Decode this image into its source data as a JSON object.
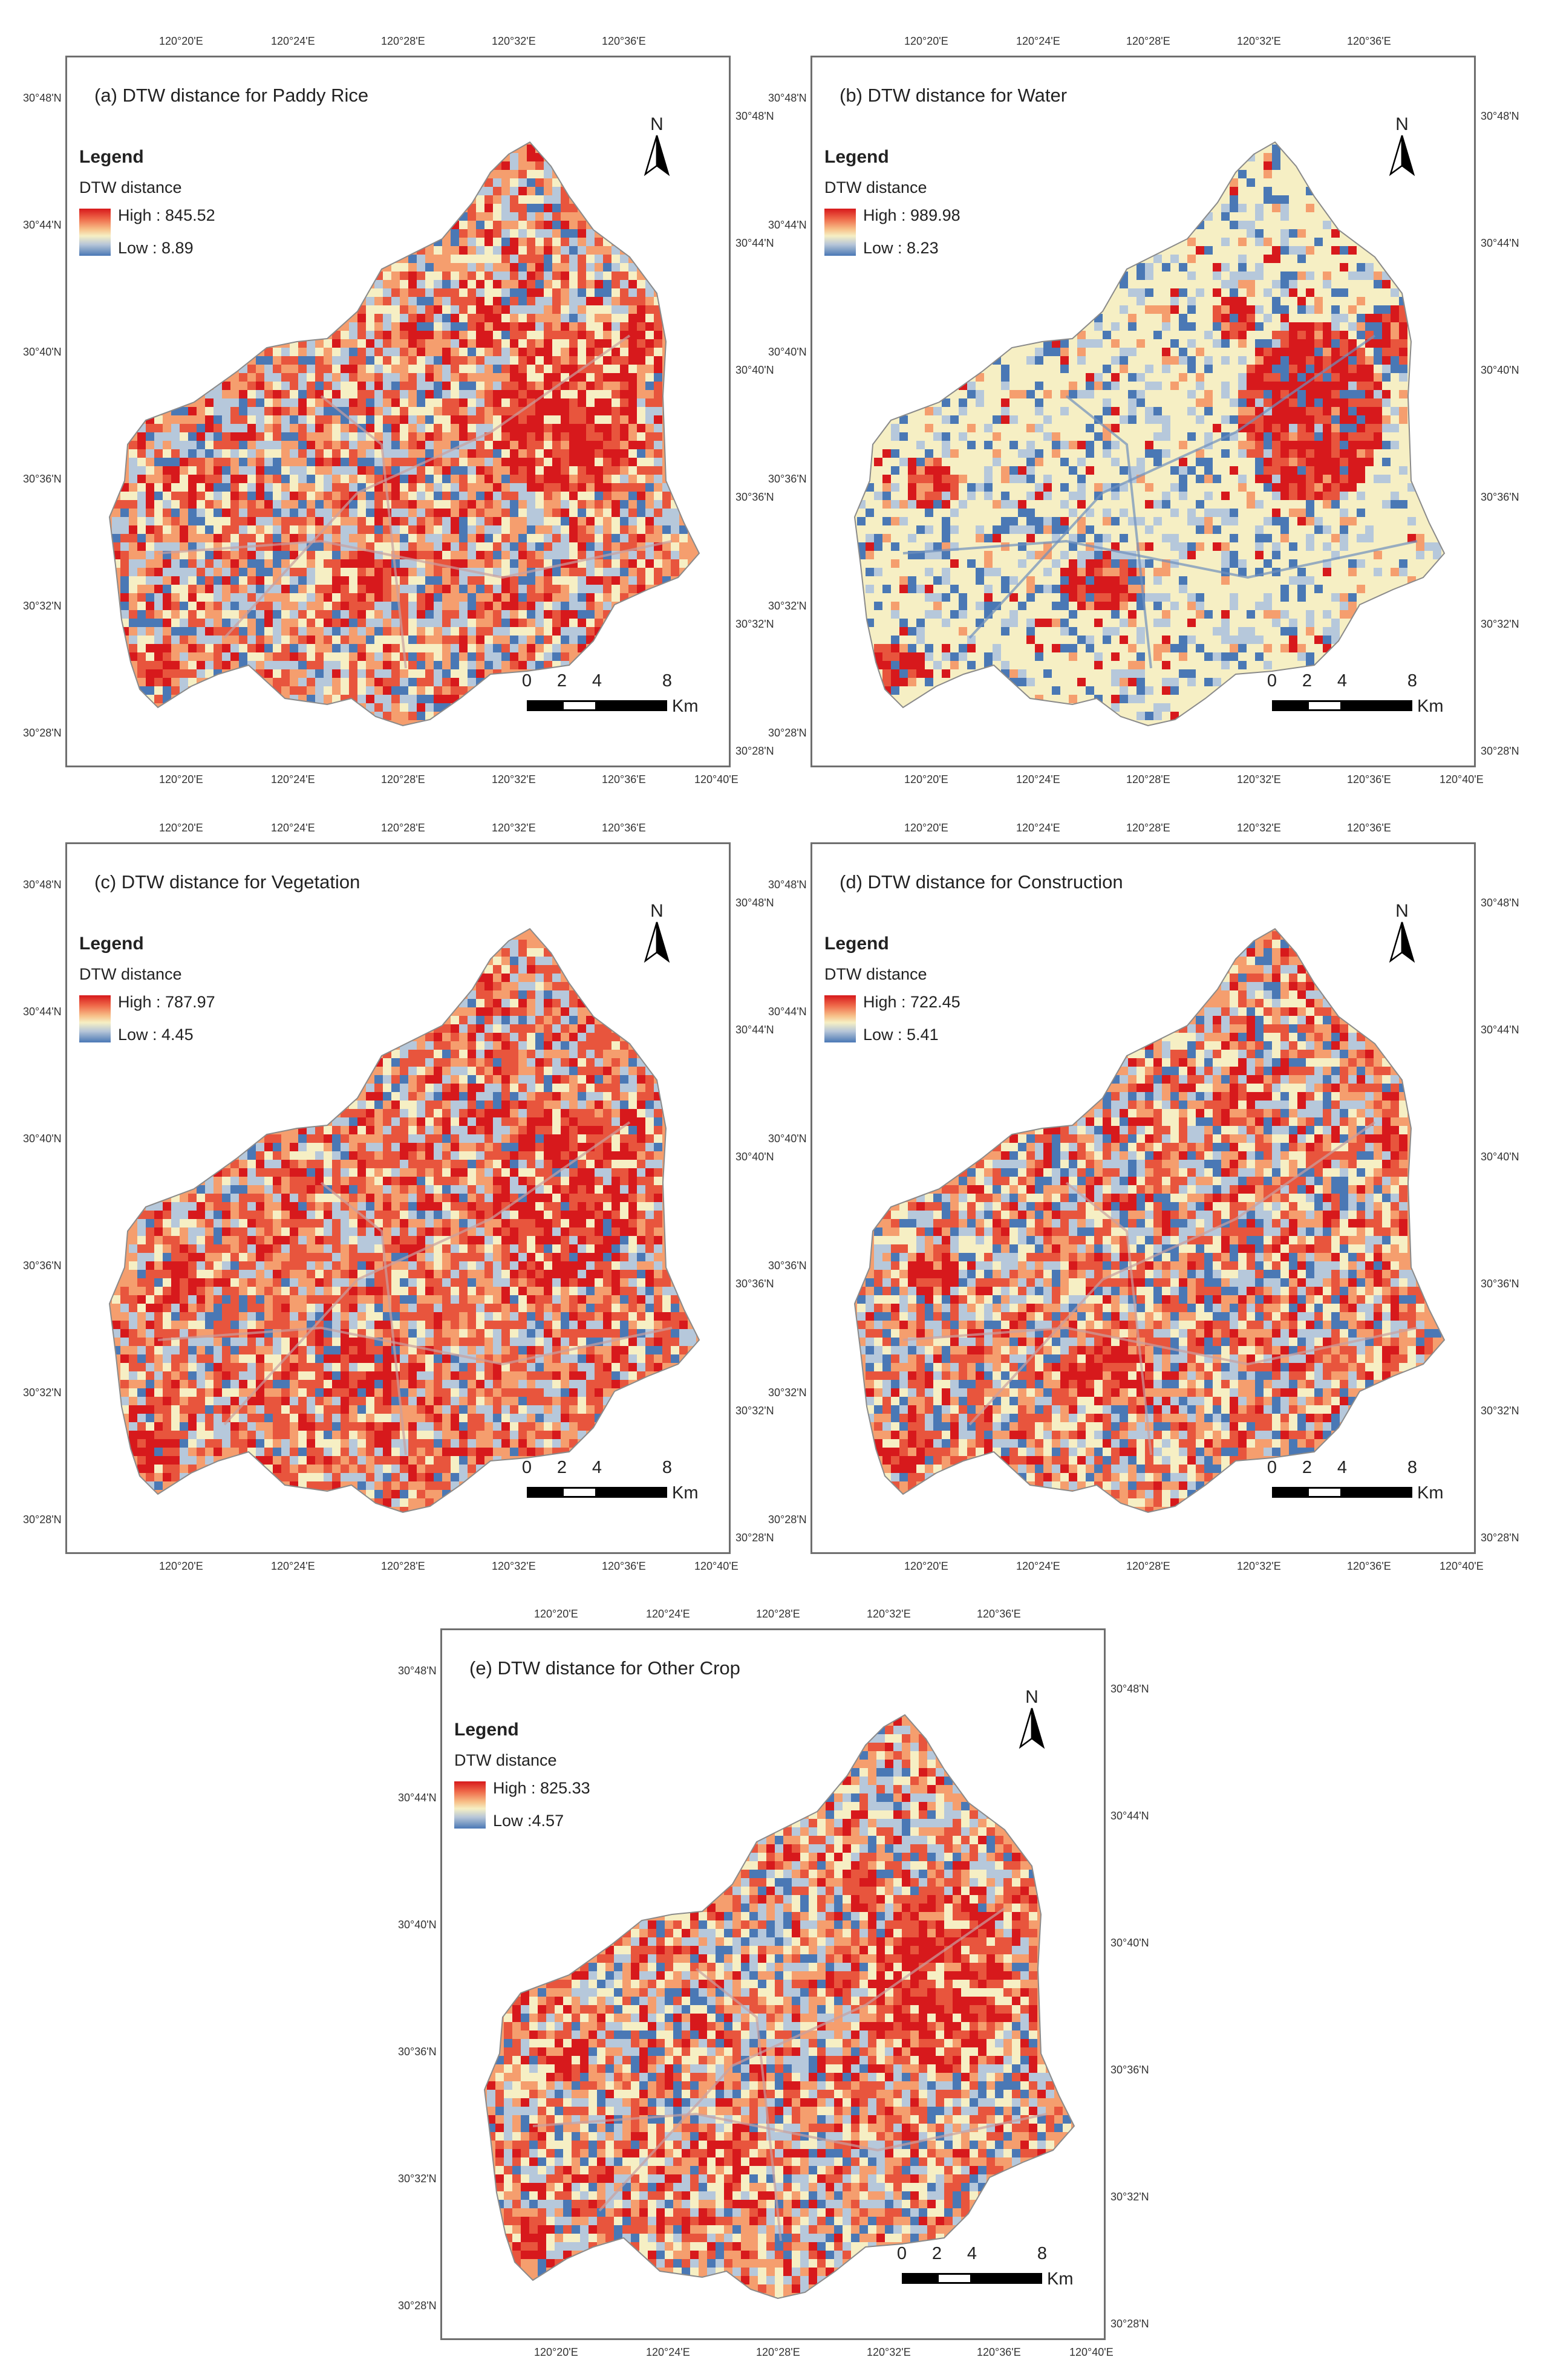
{
  "panels": [
    {
      "id": "a",
      "title": "(a) DTW distance for Paddy Rice",
      "legend_title": "Legend",
      "legend_subtitle": "DTW distance",
      "high": "High : 845.52",
      "low": "Low : 8.89",
      "dominant": "mixed"
    },
    {
      "id": "b",
      "title": "(b) DTW distance for Water",
      "legend_title": "Legend",
      "legend_subtitle": "DTW distance",
      "high": "High : 989.98",
      "low": "Low : 8.23",
      "dominant": "yellow"
    },
    {
      "id": "c",
      "title": "(c) DTW distance for Vegetation",
      "legend_title": "Legend",
      "legend_subtitle": "DTW distance",
      "high": "High : 787.97",
      "low": "Low : 4.45",
      "dominant": "red"
    },
    {
      "id": "d",
      "title": "(d) DTW distance for Construction",
      "legend_title": "Legend",
      "legend_subtitle": "DTW distance",
      "high": "High : 722.45",
      "low": "Low : 5.41",
      "dominant": "redblue"
    },
    {
      "id": "e",
      "title": "(e) DTW distance for Other Crop",
      "legend_title": "Legend",
      "legend_subtitle": "DTW distance",
      "high": "High : 825.33",
      "low": "Low :4.57",
      "dominant": "mixed"
    }
  ],
  "north_label": "N",
  "scale_bar": {
    "labels": [
      "0",
      "2",
      "4",
      "8"
    ],
    "unit": "Km"
  },
  "lon_ticks": [
    "120°20'E",
    "120°24'E",
    "120°28'E",
    "120°32'E",
    "120°36'E",
    "120°40'E"
  ],
  "lat_ticks": [
    "30°48'N",
    "30°44'N",
    "30°40'N",
    "30°36'N",
    "30°32'N",
    "30°28'N"
  ],
  "colors": {
    "high": "#d7191c",
    "mid": "#f6efc4",
    "low": "#4a78b5",
    "frame": "#6f6f6f"
  }
}
